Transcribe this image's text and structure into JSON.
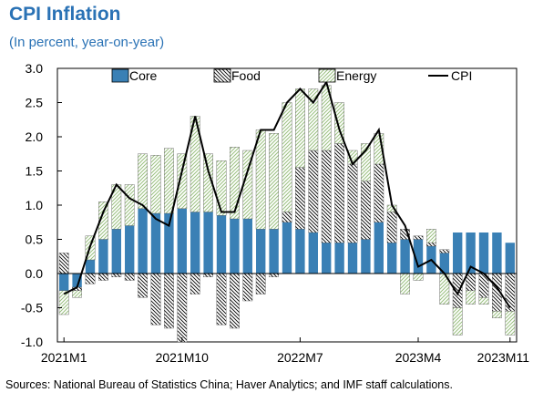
{
  "header": {
    "title": "CPI Inflation",
    "subtitle": "(In percent, year-on-year)"
  },
  "source_note": "Sources: National Bureau of Statistics China; Haver Analytics; and IMF staff calculations.",
  "colors": {
    "title": "#2a72b5",
    "core": "#3a80b5",
    "food_pattern": "#000000",
    "energy_pattern": "#a8c890",
    "cpi_line": "#000000"
  },
  "chart_data": {
    "type": "bar",
    "stacked": true,
    "title": "CPI Inflation",
    "subtitle": "(In percent, year-on-year)",
    "xlabel": "",
    "ylabel": "",
    "ylim": [
      -1.0,
      3.0
    ],
    "yticks": [
      "3.0",
      "2.5",
      "2.0",
      "1.5",
      "1.0",
      "0.5",
      "0.0",
      "-0.5",
      "-1.0"
    ],
    "ytick_values": [
      3.0,
      2.5,
      2.0,
      1.5,
      1.0,
      0.5,
      0.0,
      -0.5,
      -1.0
    ],
    "xtick_labels": [
      "2021M1",
      "2021M10",
      "2022M7",
      "2023M4",
      "2023M11"
    ],
    "xtick_indices": [
      0,
      9,
      18,
      27,
      34
    ],
    "grid": false,
    "legend_position": "top",
    "categories": [
      "2021M1",
      "2021M2",
      "2021M3",
      "2021M4",
      "2021M5",
      "2021M6",
      "2021M7",
      "2021M8",
      "2021M9",
      "2021M10",
      "2021M11",
      "2021M12",
      "2022M1",
      "2022M2",
      "2022M3",
      "2022M4",
      "2022M5",
      "2022M6",
      "2022M7",
      "2022M8",
      "2022M9",
      "2022M10",
      "2022M11",
      "2022M12",
      "2023M1",
      "2023M2",
      "2023M3",
      "2023M4",
      "2023M5",
      "2023M6",
      "2023M7",
      "2023M8",
      "2023M9",
      "2023M10",
      "2023M11"
    ],
    "series": [
      {
        "name": "Core",
        "kind": "bar",
        "values": [
          -0.25,
          -0.2,
          0.2,
          0.5,
          0.65,
          0.7,
          0.95,
          0.88,
          0.88,
          0.95,
          0.9,
          0.9,
          0.85,
          0.8,
          0.8,
          0.65,
          0.65,
          0.75,
          0.65,
          0.6,
          0.45,
          0.45,
          0.45,
          0.5,
          0.75,
          0.45,
          0.5,
          0.5,
          0.4,
          0.3,
          0.6,
          0.6,
          0.6,
          0.6,
          0.45
        ]
      },
      {
        "name": "Food",
        "kind": "bar",
        "values": [
          0.3,
          -0.05,
          -0.15,
          -0.1,
          -0.05,
          -0.1,
          -0.35,
          -0.75,
          -0.8,
          -1.0,
          -0.3,
          -0.05,
          -0.75,
          -0.8,
          -0.4,
          -0.3,
          -0.05,
          0.15,
          0.9,
          1.2,
          1.35,
          1.45,
          1.15,
          0.85,
          0.85,
          0.45,
          0.15,
          0.05,
          0.05,
          0.05,
          -0.5,
          -0.25,
          -0.35,
          -0.55,
          -0.55
        ]
      },
      {
        "name": "Energy",
        "kind": "bar",
        "values": [
          -0.35,
          -0.1,
          0.35,
          0.55,
          0.65,
          0.6,
          0.8,
          0.85,
          0.95,
          0.8,
          1.4,
          0.85,
          0.8,
          1.05,
          1.0,
          1.45,
          1.4,
          1.6,
          1.15,
          0.9,
          0.95,
          0.6,
          0.2,
          0.55,
          0.45,
          0.1,
          -0.3,
          -0.1,
          0.2,
          -0.45,
          -0.4,
          -0.2,
          -0.1,
          -0.1,
          -0.35
        ]
      },
      {
        "name": "CPI",
        "kind": "line",
        "values": [
          -0.3,
          -0.2,
          0.4,
          0.9,
          1.3,
          1.1,
          1.0,
          0.8,
          0.7,
          1.5,
          2.3,
          1.5,
          0.9,
          0.9,
          1.5,
          2.1,
          2.1,
          2.5,
          2.7,
          2.5,
          2.8,
          2.1,
          1.6,
          1.8,
          2.1,
          1.0,
          0.7,
          0.1,
          0.2,
          0.0,
          -0.3,
          0.1,
          0.0,
          -0.2,
          -0.5
        ]
      }
    ]
  }
}
